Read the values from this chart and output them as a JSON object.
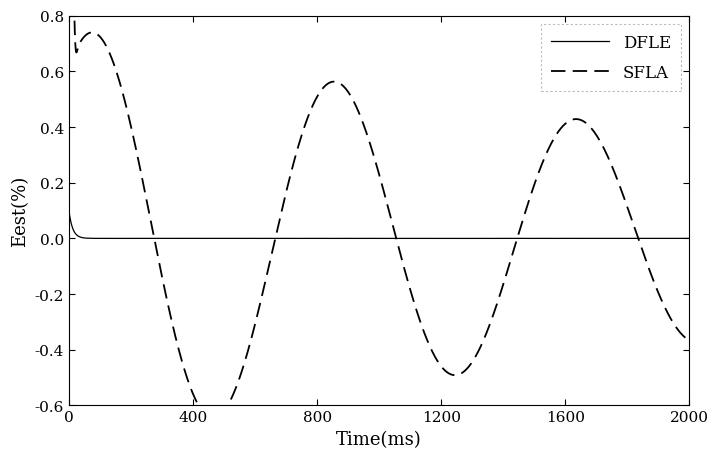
{
  "title": "",
  "xlabel": "Time(ms)",
  "ylabel": "Eest(%)",
  "xlim": [
    0,
    2000
  ],
  "ylim": [
    -0.6,
    0.8
  ],
  "xticks": [
    0,
    400,
    800,
    1200,
    1600,
    2000
  ],
  "yticks": [
    -0.6,
    -0.4,
    -0.2,
    0.0,
    0.2,
    0.4,
    0.6,
    0.8
  ],
  "line_color": "#000000",
  "background_color": "#ffffff",
  "legend_labels": [
    "DFLE",
    "SFLA"
  ],
  "sfla_period_ms": 780,
  "sfla_decay": 0.00035,
  "sfla_amplitude": 0.76,
  "sfla_peak1_t": 80,
  "sfla_initial_spike_t": 10,
  "sfla_initial_spike_amp": 0.75
}
